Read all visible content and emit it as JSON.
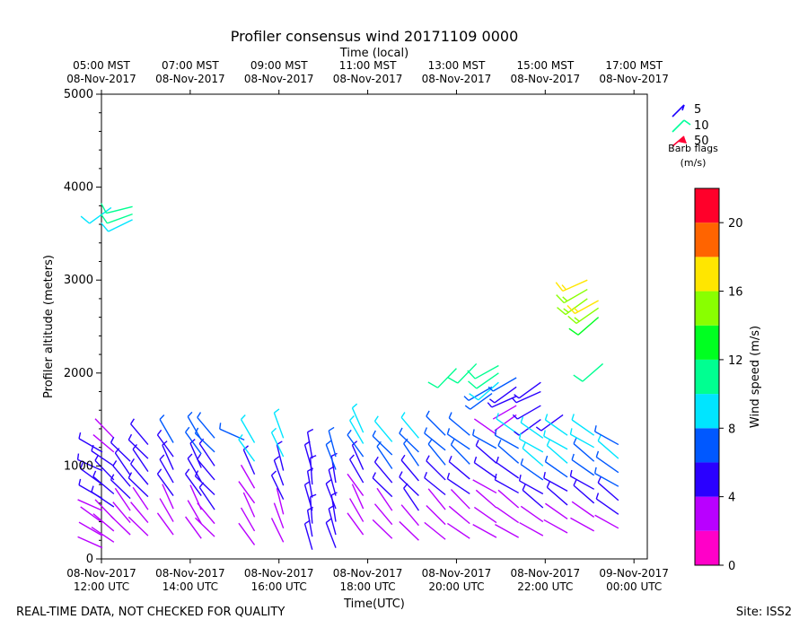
{
  "chart_data": {
    "type": "wind-barb",
    "title": "Profiler consensus wind 20171109 0000",
    "top_axis_label": "Time (local)",
    "xlabel": "Time(UTC)",
    "ylabel": "Profiler altitude (meters)",
    "ylim": [
      0,
      5000
    ],
    "y_ticks": [
      "0",
      "1000",
      "2000",
      "3000",
      "4000",
      "5000"
    ],
    "y_tick_values": [
      0,
      1000,
      2000,
      3000,
      4000,
      5000
    ],
    "xlim_hours": [
      12.0,
      24.3
    ],
    "x_tick_hours": [
      12,
      14,
      16,
      18,
      20,
      22,
      24
    ],
    "x_ticks_utc": [
      [
        "08-Nov-2017",
        "12:00 UTC"
      ],
      [
        "08-Nov-2017",
        "14:00 UTC"
      ],
      [
        "08-Nov-2017",
        "16:00 UTC"
      ],
      [
        "08-Nov-2017",
        "18:00 UTC"
      ],
      [
        "08-Nov-2017",
        "20:00 UTC"
      ],
      [
        "08-Nov-2017",
        "22:00 UTC"
      ],
      [
        "09-Nov-2017",
        "00:00 UTC"
      ]
    ],
    "x_ticks_local": [
      [
        "05:00 MST",
        "08-Nov-2017"
      ],
      [
        "07:00 MST",
        "08-Nov-2017"
      ],
      [
        "09:00 MST",
        "08-Nov-2017"
      ],
      [
        "11:00 MST",
        "08-Nov-2017"
      ],
      [
        "13:00 MST",
        "08-Nov-2017"
      ],
      [
        "15:00 MST",
        "08-Nov-2017"
      ],
      [
        "17:00 MST",
        "08-Nov-2017"
      ]
    ],
    "legend": {
      "title": "Barb flags",
      "units": "(m/s)",
      "entries": [
        {
          "label": "5",
          "color": "#1c00ff"
        },
        {
          "label": "10",
          "color": "#00ff9a"
        },
        {
          "label": "50",
          "color": "#ff0033"
        }
      ]
    },
    "colorbar": {
      "label": "Wind speed (m/s)",
      "ticks": [
        "0",
        "4",
        "8",
        "12",
        "16",
        "20"
      ],
      "tick_values": [
        0,
        4,
        8,
        12,
        16,
        20
      ],
      "range": [
        0,
        22
      ],
      "bins": [
        {
          "from": 0,
          "to": 2,
          "color": "#ff00c8"
        },
        {
          "from": 2,
          "to": 4,
          "color": "#b900ff"
        },
        {
          "from": 4,
          "to": 6,
          "color": "#2a00ff"
        },
        {
          "from": 6,
          "to": 8,
          "color": "#0058ff"
        },
        {
          "from": 8,
          "to": 10,
          "color": "#00e5ff"
        },
        {
          "from": 10,
          "to": 12,
          "color": "#00ff91"
        },
        {
          "from": 12,
          "to": 14,
          "color": "#00ff21"
        },
        {
          "from": 14,
          "to": 16,
          "color": "#89ff00"
        },
        {
          "from": 16,
          "to": 18,
          "color": "#ffe600"
        },
        {
          "from": 18,
          "to": 20,
          "color": "#ff6400"
        },
        {
          "from": 20,
          "to": 22,
          "color": "#ff002a"
        }
      ]
    },
    "columns": [
      {
        "t": 12.02,
        "alts": [
          120,
          250,
          390,
          520,
          650,
          800,
          950,
          1150
        ],
        "speeds": [
          2,
          2,
          3,
          3,
          4,
          4,
          5,
          4
        ],
        "dir": 300
      },
      {
        "t": 12.22,
        "alts": [
          3780
        ],
        "speeds": [
          9
        ],
        "dir": 240
      },
      {
        "t": 12.28,
        "alts": [
          180,
          300,
          430,
          560,
          700,
          850,
          1000,
          1150,
          1300
        ],
        "speeds": [
          2,
          2,
          3,
          4,
          4,
          5,
          4,
          3,
          3
        ],
        "dir": 310
      },
      {
        "t": 12.65,
        "alts": [
          260,
          390,
          520,
          650,
          780,
          900,
          1050
        ],
        "speeds": [
          2,
          3,
          3,
          4,
          4,
          5,
          4
        ],
        "dir": 320
      },
      {
        "t": 12.7,
        "alts": [
          3650,
          3710,
          3790
        ],
        "speeds": [
          9,
          10,
          10
        ],
        "dir": 250
      },
      {
        "t": 13.05,
        "alts": [
          250,
          390,
          530,
          670,
          800,
          940,
          1080,
          1230
        ],
        "speeds": [
          2,
          2,
          3,
          4,
          4,
          4,
          5,
          4
        ],
        "dir": 320
      },
      {
        "t": 13.62,
        "alts": [
          260,
          400,
          540,
          680,
          820,
          960,
          1100,
          1250
        ],
        "speeds": [
          3,
          3,
          3,
          4,
          4,
          5,
          5,
          6
        ],
        "dir": 330
      },
      {
        "t": 14.25,
        "alts": [
          220,
          380,
          530,
          680,
          830,
          980,
          1130,
          1280
        ],
        "speeds": [
          2,
          3,
          3,
          4,
          4,
          5,
          6,
          6
        ],
        "dir": 330
      },
      {
        "t": 14.55,
        "alts": [
          240,
          380,
          530,
          690,
          850,
          1000,
          1150,
          1300
        ],
        "speeds": [
          3,
          3,
          4,
          4,
          5,
          5,
          6,
          7
        ],
        "dir": 320
      },
      {
        "t": 15.22,
        "alts": [
          1280
        ],
        "speeds": [
          7
        ],
        "dir": 300
      },
      {
        "t": 15.45,
        "alts": [
          150,
          300,
          450,
          600,
          760,
          910,
          1050,
          1250
        ],
        "speeds": [
          2,
          3,
          3,
          3,
          3,
          4,
          8,
          8
        ],
        "dir": 330
      },
      {
        "t": 16.1,
        "alts": [
          180,
          330,
          480,
          640,
          790,
          950,
          1100,
          1300
        ],
        "speeds": [
          3,
          3,
          3,
          4,
          4,
          5,
          8,
          8
        ],
        "dir": 340
      },
      {
        "t": 16.75,
        "alts": [
          100,
          240,
          380,
          520,
          660,
          800,
          950,
          1080
        ],
        "speeds": [
          4,
          4,
          4,
          4,
          4,
          5,
          5,
          4
        ],
        "dir": 350
      },
      {
        "t": 17.28,
        "alts": [
          120,
          260,
          400,
          540,
          680,
          820,
          960,
          1100
        ],
        "speeds": [
          4,
          4,
          4,
          4,
          5,
          5,
          6,
          6
        ],
        "dir": 345
      },
      {
        "t": 17.9,
        "alts": [
          260,
          400,
          540,
          680,
          820,
          960,
          1100,
          1240,
          1360
        ],
        "speeds": [
          3,
          3,
          3,
          3,
          4,
          5,
          6,
          8,
          8
        ],
        "dir": 330
      },
      {
        "t": 18.55,
        "alts": [
          220,
          370,
          520,
          670,
          820,
          970,
          1120,
          1260
        ],
        "speeds": [
          3,
          3,
          3,
          4,
          5,
          6,
          6,
          8
        ],
        "dir": 320
      },
      {
        "t": 19.15,
        "alts": [
          200,
          360,
          520,
          680,
          840,
          1000,
          1150,
          1300
        ],
        "speeds": [
          3,
          3,
          4,
          4,
          5,
          6,
          7,
          8
        ],
        "dir": 320
      },
      {
        "t": 19.75,
        "alts": [
          210,
          370,
          530,
          690,
          850,
          1010,
          1170,
          1330
        ],
        "speeds": [
          3,
          3,
          3,
          4,
          5,
          6,
          6,
          7
        ],
        "dir": 315
      },
      {
        "t": 20.0,
        "alts": [
          2050
        ],
        "speeds": [
          10
        ],
        "dir": 230
      },
      {
        "t": 20.3,
        "alts": [
          220,
          380,
          540,
          700,
          860,
          1020,
          1180,
          1330
        ],
        "speeds": [
          2,
          3,
          3,
          4,
          5,
          6,
          6,
          6
        ],
        "dir": 310
      },
      {
        "t": 20.45,
        "alts": [
          2100
        ],
        "speeds": [
          10
        ],
        "dir": 230
      },
      {
        "t": 20.8,
        "alts": [
          1780,
          1850
        ],
        "speeds": [
          6,
          6
        ],
        "dir": 240
      },
      {
        "t": 20.9,
        "alts": [
          230,
          390,
          550,
          710,
          870,
          1030,
          1190,
          1340
        ],
        "speeds": [
          3,
          3,
          3,
          3,
          4,
          4,
          6,
          3
        ],
        "dir": 305
      },
      {
        "t": 20.95,
        "alts": [
          1900,
          2000,
          2080
        ],
        "speeds": [
          9,
          10,
          10
        ],
        "dir": 235
      },
      {
        "t": 21.35,
        "alts": [
          1550,
          1650,
          1750,
          1850,
          1950
        ],
        "speeds": [
          3,
          3,
          4,
          5,
          6
        ],
        "dir": 240
      },
      {
        "t": 21.4,
        "alts": [
          230,
          390,
          550,
          710,
          870,
          1030,
          1190,
          1340
        ],
        "speeds": [
          3,
          3,
          3,
          4,
          5,
          6,
          7,
          8
        ],
        "dir": 305
      },
      {
        "t": 21.9,
        "alts": [
          1500,
          1650,
          1800,
          1900
        ],
        "speeds": [
          4,
          4,
          5,
          5
        ],
        "dir": 240
      },
      {
        "t": 21.95,
        "alts": [
          250,
          400,
          550,
          700,
          850,
          1000,
          1150,
          1300
        ],
        "speeds": [
          3,
          3,
          4,
          4,
          6,
          8,
          8,
          8
        ],
        "dir": 305
      },
      {
        "t": 22.4,
        "alts": [
          1550
        ],
        "speeds": [
          5
        ],
        "dir": 240
      },
      {
        "t": 22.5,
        "alts": [
          280,
          430,
          580,
          730,
          880,
          1030,
          1180,
          1330
        ],
        "speeds": [
          3,
          3,
          4,
          4,
          6,
          8,
          8,
          8
        ],
        "dir": 305
      },
      {
        "t": 22.95,
        "alts": [
          2800,
          2900,
          3000
        ],
        "speeds": [
          15,
          15,
          16
        ],
        "dir": 240
      },
      {
        "t": 23.1,
        "alts": [
          300,
          450,
          600,
          750,
          900,
          1050,
          1200,
          1330
        ],
        "speeds": [
          3,
          3,
          4,
          5,
          6,
          7,
          8,
          8
        ],
        "dir": 305
      },
      {
        "t": 23.2,
        "alts": [
          2600,
          2700,
          2780
        ],
        "speeds": [
          13,
          15,
          16
        ],
        "dir": 235
      },
      {
        "t": 23.3,
        "alts": [
          2100
        ],
        "speeds": [
          10
        ],
        "dir": 235
      },
      {
        "t": 23.65,
        "alts": [
          330,
          480,
          630,
          780,
          930,
          1080,
          1230
        ],
        "speeds": [
          3,
          4,
          5,
          6,
          7,
          8,
          7
        ],
        "dir": 305
      }
    ]
  },
  "footer": {
    "left": "REAL-TIME DATA, NOT CHECKED FOR QUALITY",
    "right": "Site: ISS2"
  }
}
